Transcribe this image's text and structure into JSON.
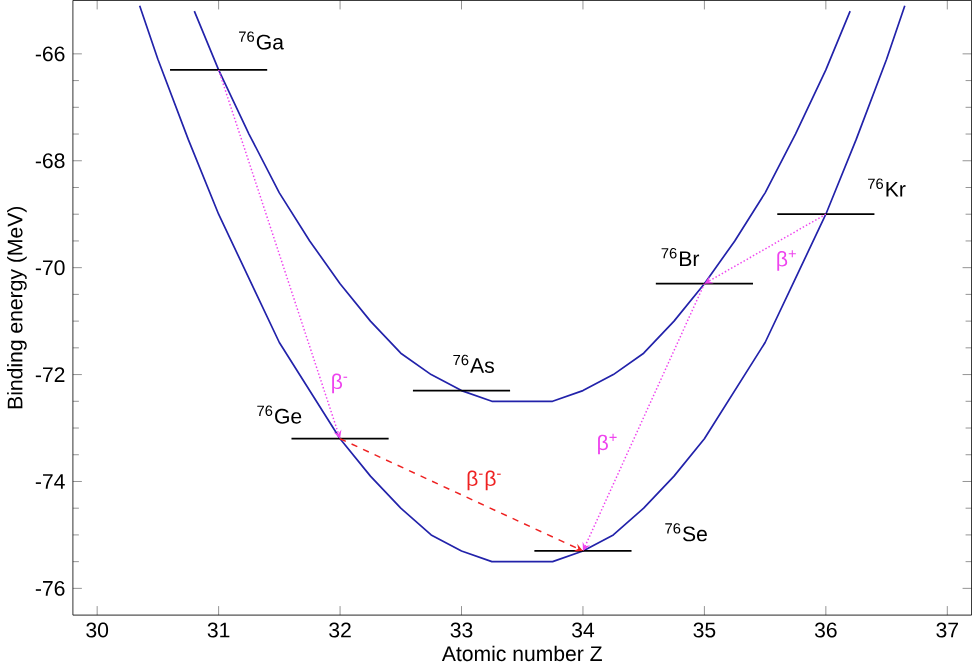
{
  "chart_data": {
    "type": "line",
    "xlabel": "Atomic number  Z",
    "ylabel": "Binding energy (MeV)",
    "xlim": [
      29.8,
      37.2
    ],
    "ylim": [
      -76.5,
      -65
    ],
    "xticks": [
      30,
      31,
      32,
      33,
      34,
      35,
      36,
      37
    ],
    "yticks": [
      -76,
      -74,
      -72,
      -70,
      -68,
      -66
    ],
    "grid": false,
    "marker": "none",
    "line_style": "solid",
    "series": [
      {
        "color": "#2222aa",
        "x": [
          30.8,
          31,
          31.25,
          31.5,
          31.75,
          32,
          32.25,
          32.5,
          32.75,
          33,
          33.25,
          33.5,
          33.75,
          34,
          34.25,
          34.5,
          34.75,
          35,
          35.25,
          35.5,
          35.75,
          36,
          36.2
        ],
        "values": [
          -65.2,
          -66.3,
          -67.5,
          -68.6,
          -69.5,
          -70.3,
          -71.0,
          -71.6,
          -72.0,
          -72.3,
          -72.5,
          -72.5,
          -72.5,
          -72.3,
          -72.0,
          -71.6,
          -71.0,
          -70.3,
          -69.5,
          -68.6,
          -67.5,
          -66.3,
          -65.2
        ]
      },
      {
        "color": "#2222aa",
        "x": [
          30.35,
          30.5,
          30.75,
          31,
          31.25,
          31.5,
          31.75,
          32,
          32.25,
          32.5,
          32.75,
          33,
          33.25,
          33.5,
          33.75,
          34,
          34.25,
          34.5,
          34.75,
          35,
          35.25,
          35.5,
          35.75,
          36,
          36.25,
          36.5,
          36.65
        ],
        "values": [
          -65.1,
          -66.1,
          -67.6,
          -69.0,
          -70.2,
          -71.4,
          -72.3,
          -73.2,
          -73.9,
          -74.5,
          -75.0,
          -75.3,
          -75.5,
          -75.5,
          -75.5,
          -75.3,
          -75.0,
          -74.5,
          -73.9,
          -73.2,
          -72.3,
          -71.4,
          -70.2,
          -69.0,
          -67.6,
          -66.1,
          -65.1
        ]
      },
      {
        "color": "#000000",
        "x": [
          30.6,
          31.4
        ],
        "values": [
          -66.3,
          -66.3
        ]
      },
      {
        "color": "#000000",
        "x": [
          31.6,
          32.4
        ],
        "values": [
          -73.2,
          -73.2
        ]
      },
      {
        "color": "#000000",
        "x": [
          32.6,
          33.4
        ],
        "values": [
          -72.3,
          -72.3
        ]
      },
      {
        "color": "#000000",
        "x": [
          33.6,
          34.4
        ],
        "values": [
          -75.3,
          -75.3
        ]
      },
      {
        "color": "#000000",
        "x": [
          34.6,
          35.4
        ],
        "values": [
          -70.3,
          -70.3
        ]
      },
      {
        "color": "#000000",
        "x": [
          35.6,
          36.4
        ],
        "values": [
          -69.0,
          -69.0
        ]
      }
    ],
    "annotations": [
      "$^{76}$Ga",
      "$^{76}$Ge",
      "$^{76}$As",
      "$^{76}$Se",
      {
        "text": "$^{76}$Br",
        "x": 35,
        "y": -70.3
      },
      "$^{76}$Kr",
      "β$^{-}$",
      "β$^{+}$",
      "β$^{+}$",
      "β$^{-}$β$^{-}$"
    ]
  }
}
